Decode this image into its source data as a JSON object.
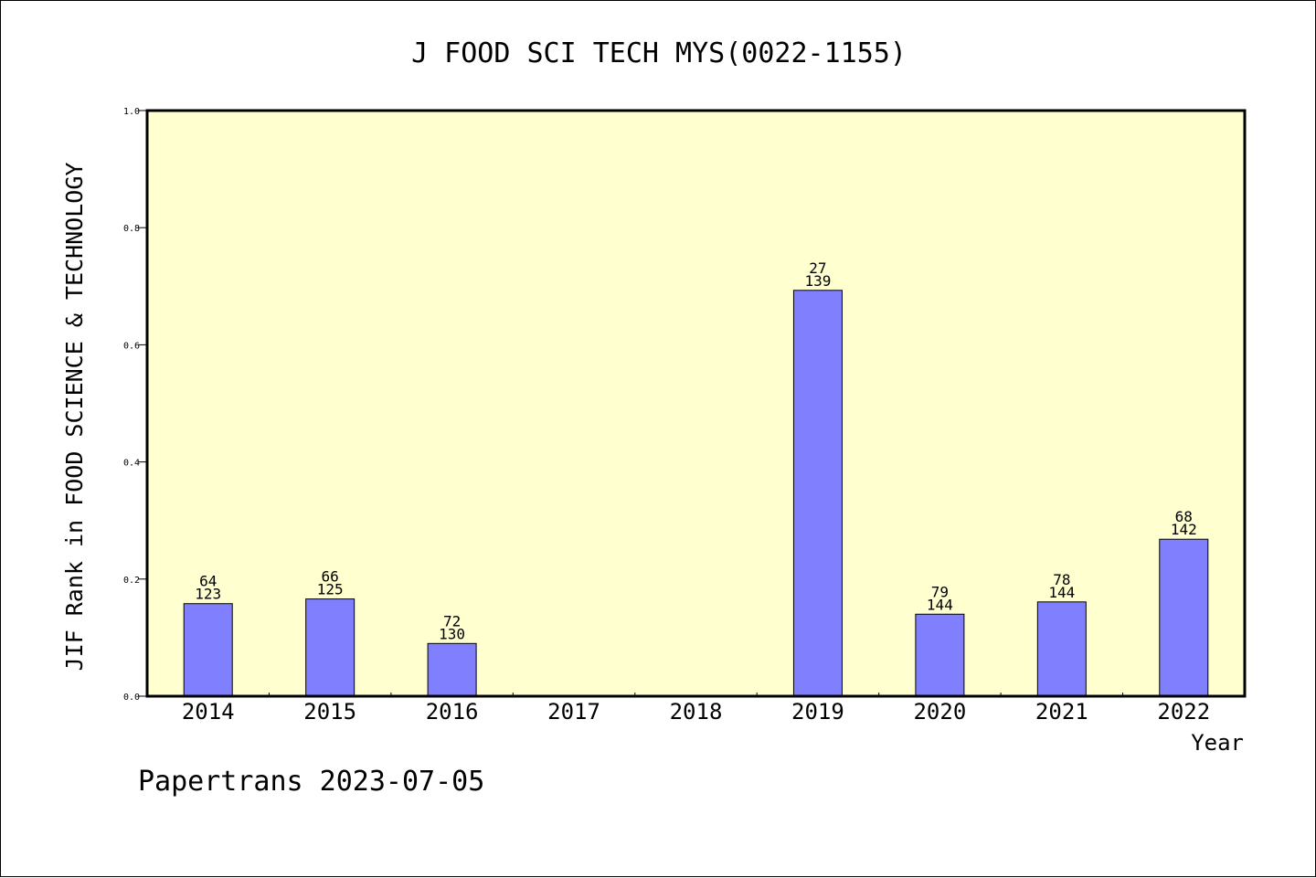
{
  "chart_data": {
    "type": "bar",
    "title": "J FOOD SCI TECH MYS(0022-1155)",
    "xlabel": "Year",
    "ylabel": "JIF Rank in FOOD SCIENCE & TECHNOLOGY",
    "ylim": [
      0,
      1.0
    ],
    "yticks": [
      "0.0",
      "0.2",
      "0.4",
      "0.6",
      "0.8",
      "1.0"
    ],
    "categories": [
      "2014",
      "2015",
      "2016",
      "2017",
      "2018",
      "2019",
      "2020",
      "2021",
      "2022"
    ],
    "values": [
      0.158,
      0.166,
      0.09,
      null,
      null,
      0.693,
      0.14,
      0.161,
      0.268
    ],
    "bar_labels": [
      {
        "rank": "64",
        "total": "123"
      },
      {
        "rank": "66",
        "total": "125"
      },
      {
        "rank": "72",
        "total": "130"
      },
      null,
      null,
      {
        "rank": "27",
        "total": "139"
      },
      {
        "rank": "79",
        "total": "144"
      },
      {
        "rank": "78",
        "total": "144"
      },
      {
        "rank": "68",
        "total": "142"
      }
    ],
    "grid": false,
    "colors": {
      "plot_background": "#ffffd0",
      "bar_fill": "#8080ff",
      "bar_stroke": "#000000",
      "frame": "#000000"
    }
  },
  "footer": {
    "text": "Papertrans 2023-07-05"
  }
}
